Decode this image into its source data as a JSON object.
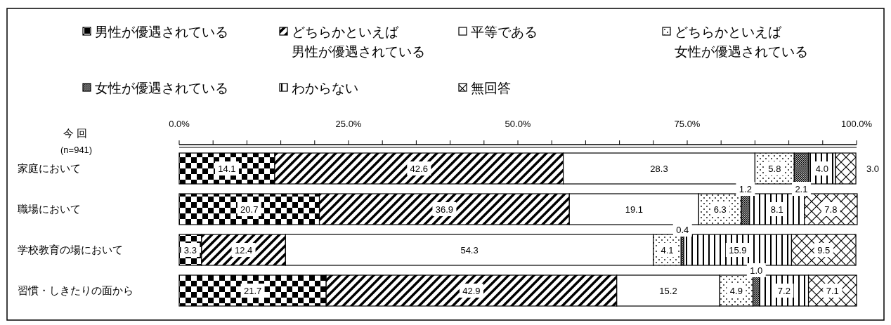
{
  "chart_data": {
    "type": "bar",
    "orientation": "horizontal",
    "stacked": true,
    "legend": "top",
    "categories": [
      "家庭において",
      "職場において",
      "学校教育の場において",
      "習慣・しきたりの面から"
    ],
    "series": [
      {
        "name": "男性が優遇されている",
        "color": "#000000",
        "values": [
          14.1,
          20.7,
          3.3,
          21.7
        ],
        "value_labels": [
          "14.1",
          "20.7",
          "3.3",
          "21.7"
        ]
      },
      {
        "name": "どちらかといえば男性が優遇されている",
        "color": "#000000",
        "values": [
          42.6,
          36.9,
          12.4,
          42.9
        ],
        "value_labels": [
          "42.6",
          "36.9",
          "12.4",
          "42.9"
        ]
      },
      {
        "name": "平等である",
        "color": "#ffffff",
        "values": [
          28.3,
          19.1,
          54.3,
          15.2
        ],
        "value_labels": [
          "28.3",
          "19.1",
          "54.3",
          "15.2"
        ]
      },
      {
        "name": "どちらかといえば女性が優遇されている",
        "color": "#000000",
        "values": [
          5.8,
          6.3,
          4.1,
          4.9
        ],
        "value_labels": [
          "5.8",
          "6.3",
          "4.1",
          "4.9"
        ]
      },
      {
        "name": "女性が優遇されている",
        "color": "#000000",
        "values": [
          2.1,
          1.2,
          0.4,
          1.0
        ],
        "value_labels": [
          "2.1",
          "1.2",
          "0.4",
          "1.0"
        ]
      },
      {
        "name": "わからない",
        "color": "#000000",
        "values": [
          4.0,
          8.1,
          15.9,
          7.2
        ],
        "value_labels": [
          "4.0",
          "8.1",
          "15.9",
          "7.2"
        ]
      },
      {
        "name": "無回答",
        "color": "#000000",
        "values": [
          3.0,
          7.8,
          9.5,
          7.1
        ],
        "value_labels": [
          "3.0",
          "7.8",
          "9.5",
          "7.1"
        ]
      }
    ],
    "xlim": [
      0,
      100
    ],
    "xticks": [
      {
        "value": 0,
        "label": "0.0%"
      },
      {
        "value": 5,
        "label": null
      },
      {
        "value": 10,
        "label": null
      },
      {
        "value": 15,
        "label": null
      },
      {
        "value": 20,
        "label": null
      },
      {
        "value": 25,
        "label": "25.0%"
      },
      {
        "value": 30,
        "label": null
      },
      {
        "value": 35,
        "label": null
      },
      {
        "value": 40,
        "label": null
      },
      {
        "value": 45,
        "label": null
      },
      {
        "value": 50,
        "label": "50.0%"
      },
      {
        "value": 55,
        "label": null
      },
      {
        "value": 60,
        "label": null
      },
      {
        "value": 65,
        "label": null
      },
      {
        "value": 70,
        "label": null
      },
      {
        "value": 75,
        "label": "75.0%"
      },
      {
        "value": 80,
        "label": null
      },
      {
        "value": 85,
        "label": null
      },
      {
        "value": 90,
        "label": null
      },
      {
        "value": 95,
        "label": null
      },
      {
        "value": 100,
        "label": "100.0%"
      }
    ],
    "annotations": [
      "今 回",
      "(n=941)"
    ]
  }
}
